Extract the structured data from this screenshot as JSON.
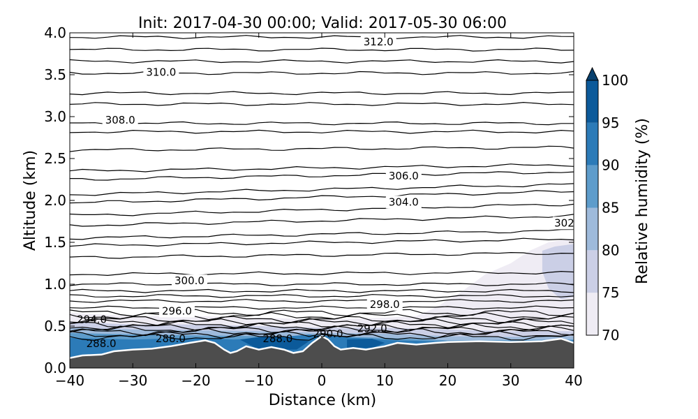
{
  "chart_data": {
    "type": "contour",
    "title": "Init: 2017-04-30 00:00; Valid: 2017-05-30 06:00",
    "xlabel": "Distance (km)",
    "ylabel": "Altitude (km)",
    "xlim": [
      -40,
      40
    ],
    "ylim": [
      0,
      4
    ],
    "x_ticks": [
      "−40",
      "−30",
      "−20",
      "−10",
      "0",
      "10",
      "20",
      "30",
      "40"
    ],
    "x_tick_values": [
      -40,
      -30,
      -20,
      -10,
      0,
      10,
      20,
      30,
      40
    ],
    "y_ticks": [
      "0.0",
      "0.5",
      "1.0",
      "1.5",
      "2.0",
      "2.5",
      "3.0",
      "3.5",
      "4.0"
    ],
    "y_tick_values": [
      0,
      0.5,
      1.0,
      1.5,
      2.0,
      2.5,
      3.0,
      3.5,
      4.0
    ],
    "colorbar": {
      "label": "Relative humidity (%)",
      "ticks": [
        "70",
        "75",
        "80",
        "85",
        "90",
        "95",
        "100"
      ],
      "levels": [
        70,
        75,
        80,
        85,
        90,
        95,
        100
      ],
      "colors": [
        "#efecf4",
        "#cbcfe6",
        "#9ebadb",
        "#5e9ccb",
        "#2c7bb8",
        "#0c5a9a",
        "#08406e"
      ],
      "extend": "max"
    },
    "contour_labels": [
      {
        "text": "312.0",
        "x": 9,
        "y": 3.89
      },
      {
        "text": "310.0",
        "x": -25.5,
        "y": 3.53
      },
      {
        "text": "308.0",
        "x": -32,
        "y": 2.96
      },
      {
        "text": "306.0",
        "x": 13,
        "y": 2.29
      },
      {
        "text": "304.0",
        "x": 13,
        "y": 1.98
      },
      {
        "text": "302",
        "x": 38.5,
        "y": 1.73
      },
      {
        "text": "300.0",
        "x": -21,
        "y": 1.04
      },
      {
        "text": "298.0",
        "x": 10,
        "y": 0.76
      },
      {
        "text": "296.0",
        "x": -23,
        "y": 0.68
      },
      {
        "text": "294.0",
        "x": -36.5,
        "y": 0.58
      },
      {
        "text": "292.0",
        "x": 8,
        "y": 0.47
      },
      {
        "text": "290.0",
        "x": 1,
        "y": 0.41
      },
      {
        "text": "288.0",
        "x": -35,
        "y": 0.29
      },
      {
        "text": "288.0",
        "x": -24,
        "y": 0.35
      },
      {
        "text": "288.0",
        "x": -7,
        "y": 0.35
      }
    ],
    "terrain_fill": "#4d4d4d"
  }
}
